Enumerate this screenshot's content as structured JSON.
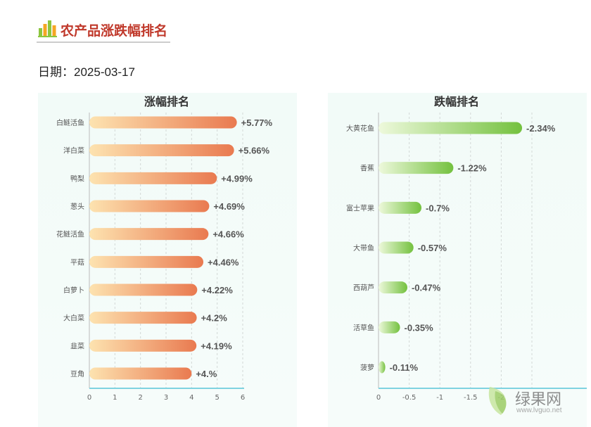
{
  "header": {
    "title": "农产品涨跌幅排名",
    "logo_icon": "bar-chart-icon"
  },
  "date": {
    "label": "日期：",
    "value": "2025-03-17"
  },
  "colors": {
    "rise_start": "#fde3b0",
    "rise_end": "#e97a50",
    "fall_start": "#eef9dc",
    "fall_end": "#74c13f",
    "axis": "#7fd3e0",
    "grid": "#d3d8d6"
  },
  "chart_data": [
    {
      "type": "bar",
      "orientation": "horizontal",
      "title": "涨幅排名",
      "categories": [
        "白鲢活鱼",
        "洋白菜",
        "鸭梨",
        "葱头",
        "花鲢活鱼",
        "平菇",
        "白萝卜",
        "大白菜",
        "韭菜",
        "豆角"
      ],
      "values": [
        5.77,
        5.66,
        4.99,
        4.69,
        4.66,
        4.46,
        4.22,
        4.2,
        4.19,
        4.0
      ],
      "data_labels": [
        "+5.77%",
        "+5.66%",
        "+4.99%",
        "+4.69%",
        "+4.66%",
        "+4.46%",
        "+4.22%",
        "+4.2%",
        "+4.19%",
        "+4.%"
      ],
      "xlim": [
        0,
        6
      ],
      "xticks": [
        "0",
        "1",
        "2",
        "3",
        "4",
        "5",
        "6"
      ],
      "grid": true
    },
    {
      "type": "bar",
      "orientation": "horizontal",
      "title": "跌幅排名",
      "categories": [
        "大黄花鱼",
        "香蕉",
        "富士苹果",
        "大带鱼",
        "西葫芦",
        "活草鱼",
        "菠萝"
      ],
      "values": [
        -2.34,
        -1.22,
        -0.7,
        -0.57,
        -0.47,
        -0.35,
        -0.11
      ],
      "data_labels": [
        "-2.34%",
        "-1.22%",
        "-0.7%",
        "-0.57%",
        "-0.47%",
        "-0.35%",
        "-0.11%"
      ],
      "xlim": [
        0,
        -2.5
      ],
      "xticks": [
        "0",
        "-0.5",
        "-1",
        "-1.5",
        "-2"
      ],
      "grid": true
    }
  ],
  "watermark": {
    "text": "绿果网",
    "url": "www.lvguo.net",
    "icon": "leaf-icon"
  }
}
